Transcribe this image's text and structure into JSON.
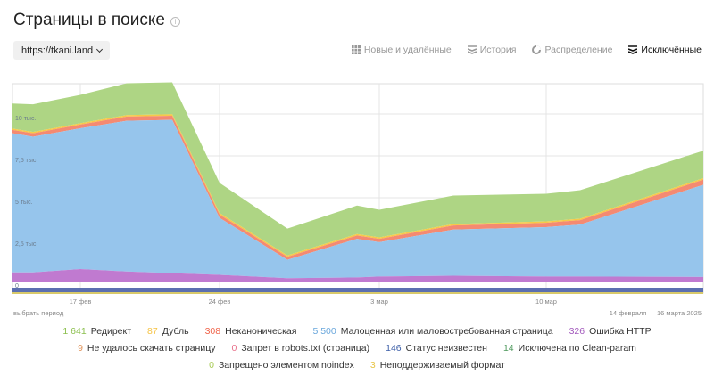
{
  "header": {
    "title": "Страницы в поиске",
    "info_icon": "info-icon"
  },
  "site_select": {
    "value": "https://tkani.land"
  },
  "tabs": [
    {
      "label": "Новые и удалённые",
      "icon": "bar-grid-icon",
      "active": false
    },
    {
      "label": "История",
      "icon": "stack-icon",
      "active": false
    },
    {
      "label": "Распределение",
      "icon": "pie-icon",
      "active": false
    },
    {
      "label": "Исключённые",
      "icon": "stack-icon",
      "active": true
    }
  ],
  "footer": {
    "range_link": "выбрать период",
    "range_text": "14 февраля — 16 марта 2025"
  },
  "legend": [
    {
      "count": "1 641",
      "label": "Редирект",
      "color": "#8cc04f"
    },
    {
      "count": "87",
      "label": "Дубль",
      "color": "#f5c242"
    },
    {
      "count": "308",
      "label": "Неканоническая",
      "color": "#f0644a"
    },
    {
      "count": "5 500",
      "label": "Малоценная или маловостребованная страница",
      "color": "#6aa7dc"
    },
    {
      "count": "326",
      "label": "Ошибка HTTP",
      "color": "#a35bbd"
    },
    {
      "count": "9",
      "label": "Не удалось скачать страницу",
      "color": "#e0935a"
    },
    {
      "count": "0",
      "label": "Запрет в robots.txt (страница)",
      "color": "#e8708a"
    },
    {
      "count": "146",
      "label": "Статус неизвестен",
      "color": "#3d5fa8"
    },
    {
      "count": "14",
      "label": "Исключена по Clean-param",
      "color": "#4f9a5e"
    },
    {
      "count": "0",
      "label": "Запрещено элементом noindex",
      "color": "#a5c94f"
    },
    {
      "count": "3",
      "label": "Неподдерживаемый формат",
      "color": "#e8c547"
    }
  ],
  "chart_data": {
    "type": "area",
    "stacked": true,
    "title": "Страницы в поиске — Исключённые",
    "x": [
      "14 фев",
      "15 фев",
      "17 фев",
      "19 фев",
      "21 фев",
      "24 фев",
      "26 фев",
      "28 фев",
      "3 мар",
      "5 мар",
      "7 мар",
      "10 мар",
      "16 мар"
    ],
    "x_tick_labels": [
      "17 фев",
      "24 фев",
      "3 мар",
      "10 мар"
    ],
    "y_tick_labels": [
      "0",
      "2,5 тыс.",
      "5 тыс.",
      "7,5 тыс.",
      "10 тыс."
    ],
    "ylim": [
      0,
      12300
    ],
    "grid": true,
    "series": [
      {
        "name": "Ошибка HTTP",
        "color": "#c07ad0",
        "values": [
          600,
          600,
          800,
          650,
          550,
          450,
          250,
          300,
          350,
          400,
          350,
          350,
          326
        ]
      },
      {
        "name": "Малоценная или маловостребованная страница",
        "color": "#96c5ec",
        "values": [
          8300,
          8100,
          8400,
          9000,
          9150,
          3400,
          1100,
          2300,
          2050,
          2750,
          2950,
          3100,
          5500
        ]
      },
      {
        "name": "Неканоническая",
        "color": "#f48a72",
        "values": [
          200,
          200,
          220,
          250,
          250,
          200,
          180,
          200,
          200,
          250,
          260,
          270,
          308
        ]
      },
      {
        "name": "Дубль",
        "color": "#f7c948",
        "values": [
          80,
          80,
          80,
          90,
          90,
          90,
          80,
          85,
          85,
          85,
          85,
          85,
          87
        ]
      },
      {
        "name": "Редирект",
        "color": "#aed584",
        "values": [
          1500,
          1650,
          1700,
          1900,
          1900,
          1800,
          1600,
          1700,
          1650,
          1700,
          1650,
          1700,
          1641
        ]
      }
    ]
  }
}
